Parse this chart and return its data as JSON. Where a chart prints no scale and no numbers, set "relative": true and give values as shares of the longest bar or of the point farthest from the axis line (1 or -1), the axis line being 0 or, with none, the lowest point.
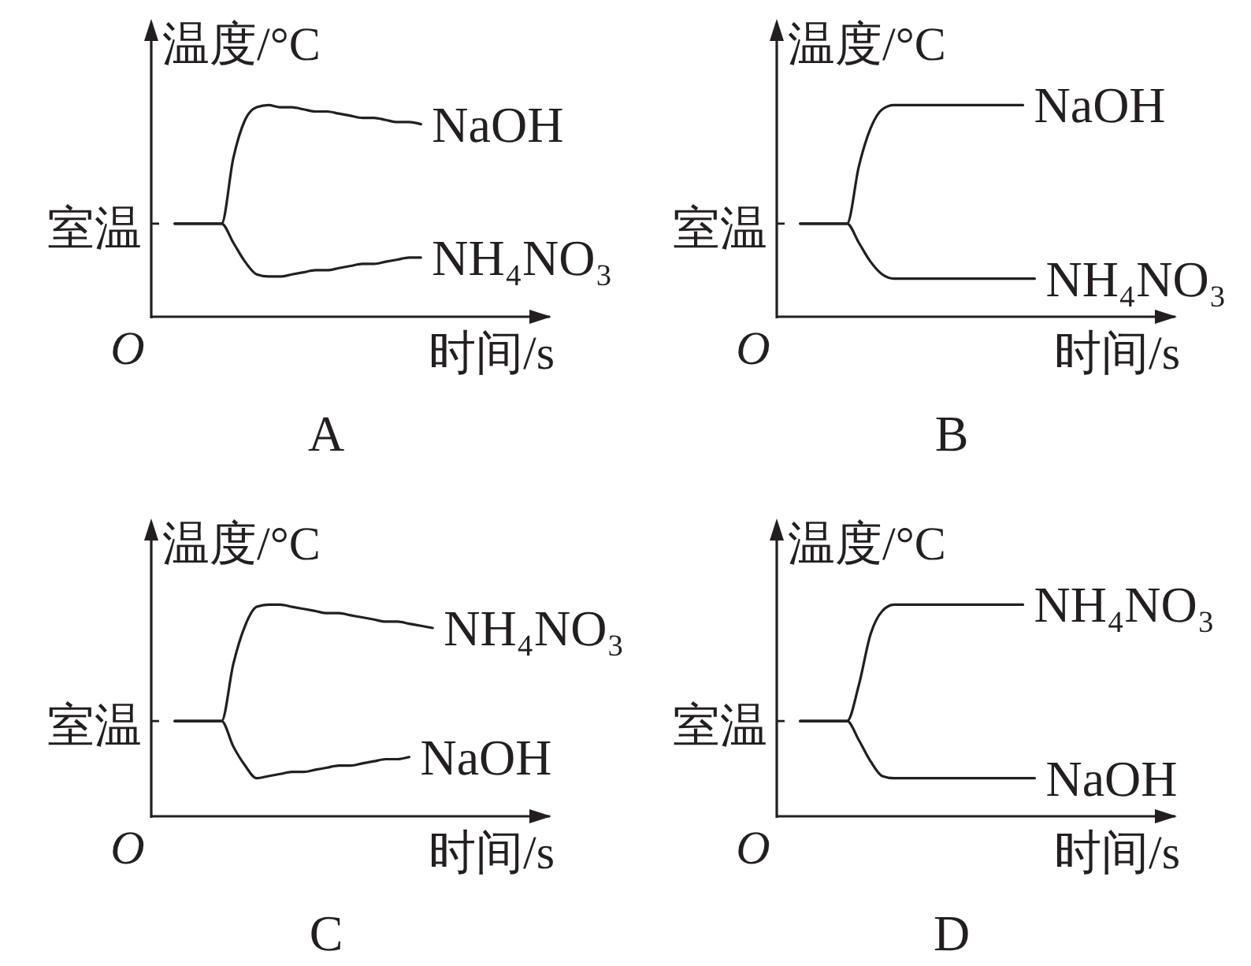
{
  "chart_data": [
    {
      "type": "line",
      "title": "A",
      "xlabel": "时间/s",
      "ylabel": "温度/°C",
      "relative": true,
      "categories": [
        null,
        null,
        null,
        null,
        null,
        null,
        null,
        null,
        null,
        null,
        null,
        null,
        null,
        null,
        null,
        null,
        null,
        null,
        null,
        null,
        null,
        null,
        null,
        null,
        null,
        null,
        null,
        null,
        null,
        null,
        null,
        null,
        null
      ],
      "series": [
        {
          "name": "NaOH",
          "color": "#231f20",
          "values": [
            0.44,
            0.44,
            0.44,
            0.44,
            0.44,
            0.75,
            0.93,
            0.99,
            1.0,
            0.99,
            0.99,
            0.98,
            0.97,
            0.97,
            0.96,
            0.95,
            0.94,
            0.94,
            0.93,
            0.92,
            0.92,
            0.91,
            null,
            null,
            null,
            null,
            null,
            null,
            null,
            null,
            null,
            null,
            null
          ]
        },
        {
          "name": "NH₄NO₃",
          "color": "#231f20",
          "values": [
            0.44,
            0.44,
            0.44,
            0.44,
            0.44,
            0.35,
            0.26,
            0.2,
            0.19,
            0.19,
            0.2,
            0.21,
            0.22,
            0.22,
            0.23,
            0.24,
            0.25,
            0.25,
            0.26,
            0.27,
            0.28,
            0.28,
            null,
            null,
            null,
            null,
            null,
            null,
            null,
            null,
            null,
            null,
            null
          ]
        }
      ],
      "annotations": [
        "室温",
        "O"
      ]
    },
    {
      "type": "line",
      "title": "B",
      "xlabel": "时间/s",
      "ylabel": "温度/°C",
      "relative": true,
      "categories": [
        null,
        null,
        null,
        null,
        null,
        null,
        null,
        null,
        null,
        null,
        null,
        null,
        null,
        null,
        null,
        null,
        null,
        null,
        null,
        null,
        null,
        null,
        null,
        null,
        null,
        null,
        null,
        null,
        null,
        null,
        null,
        null,
        null
      ],
      "series": [
        {
          "name": "NaOH",
          "color": "#231f20",
          "values": [
            0.44,
            0.44,
            0.44,
            0.44,
            0.44,
            0.71,
            0.89,
            0.98,
            1.0,
            1.0,
            1.0,
            1.0,
            1.0,
            1.0,
            1.0,
            1.0,
            1.0,
            1.0,
            1.0,
            1.0,
            null,
            null,
            null,
            null,
            null,
            null,
            null,
            null,
            null,
            null,
            null,
            null,
            null
          ]
        },
        {
          "name": "NH₄NO₃",
          "color": "#231f20",
          "values": [
            0.44,
            0.44,
            0.44,
            0.44,
            0.44,
            0.35,
            0.26,
            0.2,
            0.18,
            0.18,
            0.18,
            0.18,
            0.18,
            0.18,
            0.18,
            0.18,
            0.18,
            0.18,
            0.18,
            0.18,
            0.18,
            null,
            null,
            null,
            null,
            null,
            null,
            null,
            null,
            null,
            null,
            null,
            null
          ]
        }
      ],
      "annotations": [
        "室温",
        "O"
      ]
    },
    {
      "type": "line",
      "title": "C",
      "xlabel": "时间/s",
      "ylabel": "温度/°C",
      "relative": true,
      "categories": [
        null,
        null,
        null,
        null,
        null,
        null,
        null,
        null,
        null,
        null,
        null,
        null,
        null,
        null,
        null,
        null,
        null,
        null,
        null,
        null,
        null,
        null,
        null,
        null,
        null,
        null,
        null,
        null,
        null,
        null,
        null,
        null,
        null
      ],
      "series": [
        {
          "name": "NH₄NO₃",
          "color": "#231f20",
          "values": [
            0.45,
            0.45,
            0.45,
            0.45,
            0.45,
            0.72,
            0.9,
            0.99,
            1.0,
            1.0,
            0.99,
            0.98,
            0.97,
            0.96,
            0.96,
            0.95,
            0.94,
            0.93,
            0.92,
            0.92,
            0.91,
            0.9,
            0.89,
            null,
            null,
            null,
            null,
            null,
            null,
            null,
            null,
            null,
            null
          ]
        },
        {
          "name": "NaOH",
          "color": "#231f20",
          "values": [
            0.45,
            0.45,
            0.45,
            0.45,
            0.45,
            0.33,
            0.24,
            0.18,
            0.19,
            0.2,
            0.21,
            0.21,
            0.22,
            0.23,
            0.24,
            0.24,
            0.25,
            0.26,
            0.27,
            0.27,
            0.28,
            null,
            null,
            null,
            null,
            null,
            null,
            null,
            null,
            null,
            null,
            null,
            null
          ]
        }
      ],
      "annotations": [
        "室温",
        "O"
      ]
    },
    {
      "type": "line",
      "title": "D",
      "xlabel": "时间/s",
      "ylabel": "温度/°C",
      "relative": true,
      "categories": [
        null,
        null,
        null,
        null,
        null,
        null,
        null,
        null,
        null,
        null,
        null,
        null,
        null,
        null,
        null,
        null,
        null,
        null,
        null,
        null,
        null,
        null,
        null,
        null,
        null,
        null,
        null,
        null,
        null,
        null,
        null,
        null,
        null
      ],
      "series": [
        {
          "name": "NH₄NO₃",
          "color": "#231f20",
          "values": [
            0.45,
            0.45,
            0.45,
            0.45,
            0.45,
            0.62,
            0.86,
            0.97,
            1.0,
            1.0,
            1.0,
            1.0,
            1.0,
            1.0,
            1.0,
            1.0,
            1.0,
            1.0,
            1.0,
            1.0,
            null,
            null,
            null,
            null,
            null,
            null,
            null,
            null,
            null,
            null,
            null,
            null,
            null
          ]
        },
        {
          "name": "NaOH",
          "color": "#231f20",
          "values": [
            0.45,
            0.45,
            0.45,
            0.45,
            0.45,
            0.36,
            0.26,
            0.19,
            0.18,
            0.18,
            0.18,
            0.18,
            0.18,
            0.18,
            0.18,
            0.18,
            0.18,
            0.18,
            0.18,
            0.18,
            0.18,
            null,
            null,
            null,
            null,
            null,
            null,
            null,
            null,
            null,
            null,
            null,
            null
          ]
        }
      ],
      "annotations": [
        "室温",
        "O"
      ]
    }
  ]
}
